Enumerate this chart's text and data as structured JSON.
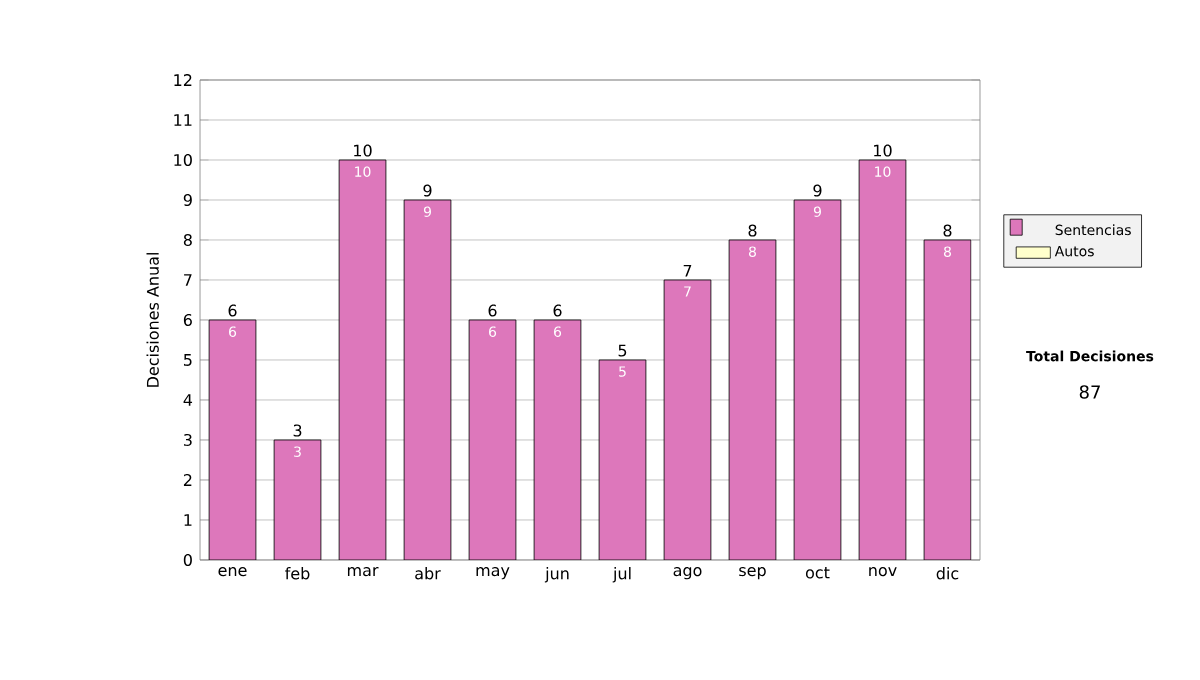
{
  "chart_data": {
    "type": "bar",
    "stacked": true,
    "ylabel": "Decisiones Anual",
    "categories": [
      "ene",
      "feb",
      "mar",
      "abr",
      "may",
      "jun",
      "jul",
      "ago",
      "sep",
      "oct",
      "nov",
      "dic"
    ],
    "series": [
      {
        "name": "Sentencias",
        "color": "#dd77bb",
        "values": [
          6,
          3,
          10,
          9,
          6,
          6,
          5,
          7,
          8,
          9,
          10,
          8
        ]
      },
      {
        "name": "Autos",
        "color": "#ffffcc",
        "values": [
          null,
          null,
          null,
          null,
          null,
          null,
          null,
          null,
          null,
          null,
          null,
          null
        ]
      }
    ],
    "totals": [
      "6",
      "3",
      "10",
      "9",
      "6",
      "6",
      "5",
      "7",
      "8",
      "9",
      "10",
      "8"
    ],
    "data_labels": true,
    "ylim": [
      0,
      12
    ],
    "yticks": [
      0,
      1,
      2,
      3,
      4,
      5,
      6,
      7,
      8,
      9,
      10,
      11,
      12
    ],
    "grid": "y",
    "legend": "right",
    "annotations": [
      "Total Decisiones",
      "87"
    ]
  }
}
